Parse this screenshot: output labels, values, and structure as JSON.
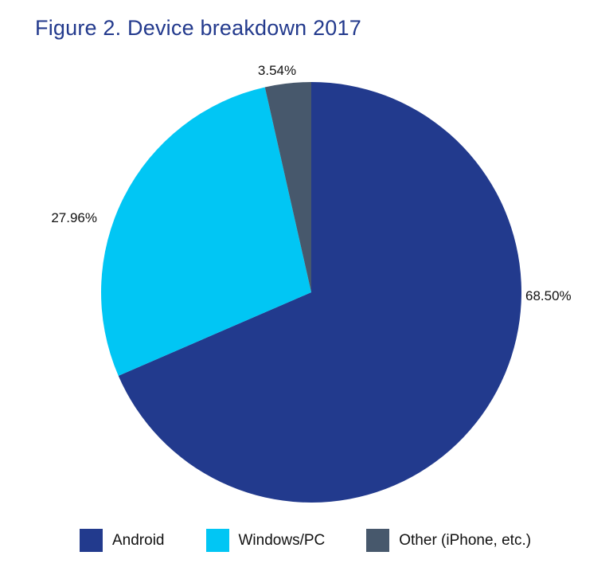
{
  "chart_data": {
    "type": "pie",
    "title": "Figure 2. Device breakdown 2017",
    "slices": [
      {
        "label": "Android",
        "value": 68.5,
        "display": "68.50%",
        "color": "#223a8d"
      },
      {
        "label": "Windows/PC",
        "value": 27.96,
        "display": "27.96%",
        "color": "#01c6f4"
      },
      {
        "label": "Other (iPhone, etc.)",
        "value": 3.54,
        "display": "3.54%",
        "color": "#47586c"
      }
    ],
    "legend_position": "bottom"
  }
}
